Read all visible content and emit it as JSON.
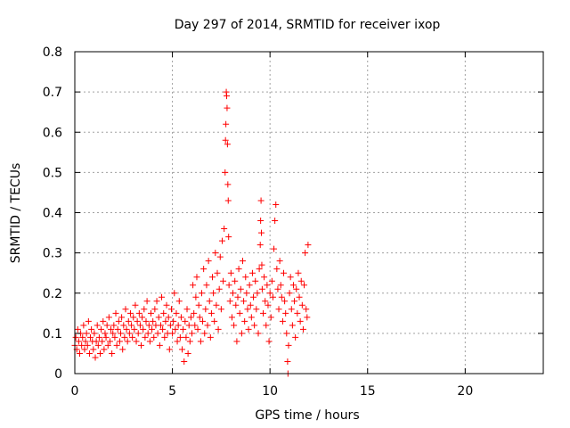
{
  "chart_data": {
    "type": "scatter",
    "title": "Day 297 of 2014, SRMTID for receiver ixop",
    "xlabel": "GPS time / hours",
    "ylabel": "SRMTID / TECUs",
    "xlim": [
      0,
      24
    ],
    "ylim": [
      0,
      0.8
    ],
    "xticks": [
      0,
      5,
      10,
      15,
      20
    ],
    "xtick_labels": [
      "0",
      "5",
      "10",
      "15",
      "20"
    ],
    "yticks": [
      0,
      0.1,
      0.2,
      0.3,
      0.4,
      0.5,
      0.6,
      0.7,
      0.8
    ],
    "ytick_labels": [
      "0",
      "0.1",
      "0.2",
      "0.3",
      "0.4",
      "0.5",
      "0.6",
      "0.7",
      "0.8"
    ],
    "grid": true,
    "marker": "+",
    "color": "#ff0000",
    "series": [
      {
        "name": "SRMTID",
        "points": [
          [
            0.0,
            0.07
          ],
          [
            0.05,
            0.09
          ],
          [
            0.1,
            0.06
          ],
          [
            0.15,
            0.11
          ],
          [
            0.2,
            0.08
          ],
          [
            0.25,
            0.05
          ],
          [
            0.3,
            0.1
          ],
          [
            0.35,
            0.07
          ],
          [
            0.4,
            0.09
          ],
          [
            0.45,
            0.12
          ],
          [
            0.5,
            0.06
          ],
          [
            0.55,
            0.08
          ],
          [
            0.6,
            0.1
          ],
          [
            0.65,
            0.07
          ],
          [
            0.7,
            0.13
          ],
          [
            0.75,
            0.05
          ],
          [
            0.8,
            0.09
          ],
          [
            0.85,
            0.11
          ],
          [
            0.9,
            0.08
          ],
          [
            0.95,
            0.06
          ],
          [
            1.0,
            0.1
          ],
          [
            1.05,
            0.04
          ],
          [
            1.1,
            0.08
          ],
          [
            1.15,
            0.12
          ],
          [
            1.2,
            0.07
          ],
          [
            1.25,
            0.09
          ],
          [
            1.3,
            0.05
          ],
          [
            1.35,
            0.11
          ],
          [
            1.4,
            0.08
          ],
          [
            1.45,
            0.13
          ],
          [
            1.5,
            0.06
          ],
          [
            1.55,
            0.1
          ],
          [
            1.6,
            0.09
          ],
          [
            1.65,
            0.12
          ],
          [
            1.7,
            0.07
          ],
          [
            1.75,
            0.14
          ],
          [
            1.8,
            0.08
          ],
          [
            1.85,
            0.11
          ],
          [
            1.9,
            0.05
          ],
          [
            1.95,
            0.1
          ],
          [
            2.0,
            0.12
          ],
          [
            2.05,
            0.09
          ],
          [
            2.1,
            0.15
          ],
          [
            2.15,
            0.07
          ],
          [
            2.2,
            0.11
          ],
          [
            2.25,
            0.13
          ],
          [
            2.3,
            0.08
          ],
          [
            2.35,
            0.1
          ],
          [
            2.4,
            0.14
          ],
          [
            2.45,
            0.06
          ],
          [
            2.5,
            0.12
          ],
          [
            2.55,
            0.09
          ],
          [
            2.6,
            0.16
          ],
          [
            2.65,
            0.11
          ],
          [
            2.7,
            0.08
          ],
          [
            2.75,
            0.13
          ],
          [
            2.8,
            0.1
          ],
          [
            2.85,
            0.15
          ],
          [
            2.9,
            0.12
          ],
          [
            2.95,
            0.09
          ],
          [
            3.0,
            0.14
          ],
          [
            3.05,
            0.11
          ],
          [
            3.1,
            0.17
          ],
          [
            3.15,
            0.08
          ],
          [
            3.2,
            0.13
          ],
          [
            3.25,
            0.1
          ],
          [
            3.3,
            0.15
          ],
          [
            3.35,
            0.12
          ],
          [
            3.4,
            0.07
          ],
          [
            3.45,
            0.14
          ],
          [
            3.5,
            0.11
          ],
          [
            3.55,
            0.16
          ],
          [
            3.6,
            0.09
          ],
          [
            3.65,
            0.13
          ],
          [
            3.7,
            0.18
          ],
          [
            3.75,
            0.1
          ],
          [
            3.8,
            0.12
          ],
          [
            3.85,
            0.08
          ],
          [
            3.9,
            0.15
          ],
          [
            3.95,
            0.11
          ],
          [
            4.0,
            0.13
          ],
          [
            4.05,
            0.09
          ],
          [
            4.1,
            0.16
          ],
          [
            4.15,
            0.12
          ],
          [
            4.2,
            0.18
          ],
          [
            4.25,
            0.1
          ],
          [
            4.3,
            0.14
          ],
          [
            4.35,
            0.07
          ],
          [
            4.4,
            0.12
          ],
          [
            4.45,
            0.19
          ],
          [
            4.5,
            0.11
          ],
          [
            4.55,
            0.15
          ],
          [
            4.6,
            0.09
          ],
          [
            4.65,
            0.13
          ],
          [
            4.7,
            0.17
          ],
          [
            4.75,
            0.1
          ],
          [
            4.8,
            0.14
          ],
          [
            4.85,
            0.06
          ],
          [
            4.9,
            0.12
          ],
          [
            4.95,
            0.16
          ],
          [
            5.0,
            0.1
          ],
          [
            5.05,
            0.13
          ],
          [
            5.1,
            0.2
          ],
          [
            5.15,
            0.11
          ],
          [
            5.2,
            0.15
          ],
          [
            5.25,
            0.08
          ],
          [
            5.3,
            0.12
          ],
          [
            5.35,
            0.18
          ],
          [
            5.4,
            0.09
          ],
          [
            5.45,
            0.14
          ],
          [
            5.5,
            0.06
          ],
          [
            5.55,
            0.11
          ],
          [
            5.6,
            0.03
          ],
          [
            5.65,
            0.13
          ],
          [
            5.7,
            0.09
          ],
          [
            5.75,
            0.16
          ],
          [
            5.8,
            0.05
          ],
          [
            5.85,
            0.12
          ],
          [
            5.9,
            0.08
          ],
          [
            5.95,
            0.14
          ],
          [
            6.0,
            0.1
          ],
          [
            6.05,
            0.22
          ],
          [
            6.1,
            0.15
          ],
          [
            6.15,
            0.12
          ],
          [
            6.2,
            0.19
          ],
          [
            6.25,
            0.24
          ],
          [
            6.3,
            0.11
          ],
          [
            6.35,
            0.17
          ],
          [
            6.4,
            0.14
          ],
          [
            6.45,
            0.08
          ],
          [
            6.5,
            0.2
          ],
          [
            6.55,
            0.13
          ],
          [
            6.6,
            0.26
          ],
          [
            6.65,
            0.1
          ],
          [
            6.7,
            0.16
          ],
          [
            6.75,
            0.22
          ],
          [
            6.8,
            0.12
          ],
          [
            6.85,
            0.28
          ],
          [
            6.9,
            0.18
          ],
          [
            6.95,
            0.09
          ],
          [
            7.0,
            0.15
          ],
          [
            7.05,
            0.24
          ],
          [
            7.1,
            0.2
          ],
          [
            7.15,
            0.13
          ],
          [
            7.2,
            0.3
          ],
          [
            7.25,
            0.17
          ],
          [
            7.3,
            0.25
          ],
          [
            7.35,
            0.11
          ],
          [
            7.4,
            0.21
          ],
          [
            7.45,
            0.29
          ],
          [
            7.5,
            0.16
          ],
          [
            7.55,
            0.33
          ],
          [
            7.6,
            0.23
          ],
          [
            7.65,
            0.36
          ],
          [
            7.7,
            0.5
          ],
          [
            7.72,
            0.58
          ],
          [
            7.74,
            0.62
          ],
          [
            7.76,
            0.7
          ],
          [
            7.78,
            0.69
          ],
          [
            7.8,
            0.66
          ],
          [
            7.82,
            0.57
          ],
          [
            7.84,
            0.47
          ],
          [
            7.86,
            0.43
          ],
          [
            7.88,
            0.34
          ],
          [
            7.9,
            0.22
          ],
          [
            7.95,
            0.18
          ],
          [
            8.0,
            0.25
          ],
          [
            8.05,
            0.14
          ],
          [
            8.1,
            0.2
          ],
          [
            8.15,
            0.12
          ],
          [
            8.2,
            0.23
          ],
          [
            8.25,
            0.17
          ],
          [
            8.3,
            0.08
          ],
          [
            8.35,
            0.19
          ],
          [
            8.4,
            0.26
          ],
          [
            8.45,
            0.15
          ],
          [
            8.5,
            0.21
          ],
          [
            8.55,
            0.1
          ],
          [
            8.6,
            0.28
          ],
          [
            8.65,
            0.18
          ],
          [
            8.7,
            0.13
          ],
          [
            8.75,
            0.24
          ],
          [
            8.8,
            0.2
          ],
          [
            8.85,
            0.16
          ],
          [
            8.9,
            0.11
          ],
          [
            8.95,
            0.22
          ],
          [
            9.0,
            0.17
          ],
          [
            9.05,
            0.14
          ],
          [
            9.1,
            0.25
          ],
          [
            9.15,
            0.19
          ],
          [
            9.2,
            0.12
          ],
          [
            9.25,
            0.23
          ],
          [
            9.3,
            0.16
          ],
          [
            9.35,
            0.2
          ],
          [
            9.4,
            0.1
          ],
          [
            9.45,
            0.26
          ],
          [
            9.5,
            0.32
          ],
          [
            9.52,
            0.38
          ],
          [
            9.54,
            0.43
          ],
          [
            9.56,
            0.35
          ],
          [
            9.58,
            0.27
          ],
          [
            9.6,
            0.21
          ],
          [
            9.65,
            0.15
          ],
          [
            9.7,
            0.24
          ],
          [
            9.75,
            0.18
          ],
          [
            9.8,
            0.12
          ],
          [
            9.85,
            0.22
          ],
          [
            9.9,
            0.17
          ],
          [
            9.95,
            0.08
          ],
          [
            10.0,
            0.2
          ],
          [
            10.05,
            0.14
          ],
          [
            10.1,
            0.23
          ],
          [
            10.15,
            0.19
          ],
          [
            10.2,
            0.31
          ],
          [
            10.25,
            0.38
          ],
          [
            10.3,
            0.42
          ],
          [
            10.35,
            0.26
          ],
          [
            10.4,
            0.21
          ],
          [
            10.45,
            0.16
          ],
          [
            10.5,
            0.28
          ],
          [
            10.55,
            0.22
          ],
          [
            10.6,
            0.19
          ],
          [
            10.65,
            0.13
          ],
          [
            10.7,
            0.25
          ],
          [
            10.75,
            0.18
          ],
          [
            10.8,
            0.15
          ],
          [
            10.85,
            0.1
          ],
          [
            10.9,
            0.03
          ],
          [
            10.92,
            0.0
          ],
          [
            10.95,
            0.07
          ],
          [
            11.0,
            0.2
          ],
          [
            11.05,
            0.24
          ],
          [
            11.1,
            0.16
          ],
          [
            11.15,
            0.12
          ],
          [
            11.2,
            0.22
          ],
          [
            11.25,
            0.18
          ],
          [
            11.3,
            0.09
          ],
          [
            11.35,
            0.21
          ],
          [
            11.4,
            0.15
          ],
          [
            11.45,
            0.25
          ],
          [
            11.5,
            0.19
          ],
          [
            11.55,
            0.13
          ],
          [
            11.6,
            0.23
          ],
          [
            11.65,
            0.17
          ],
          [
            11.7,
            0.11
          ],
          [
            11.75,
            0.22
          ],
          [
            11.8,
            0.3
          ],
          [
            11.85,
            0.16
          ],
          [
            11.9,
            0.14
          ],
          [
            11.95,
            0.32
          ]
        ]
      }
    ]
  }
}
